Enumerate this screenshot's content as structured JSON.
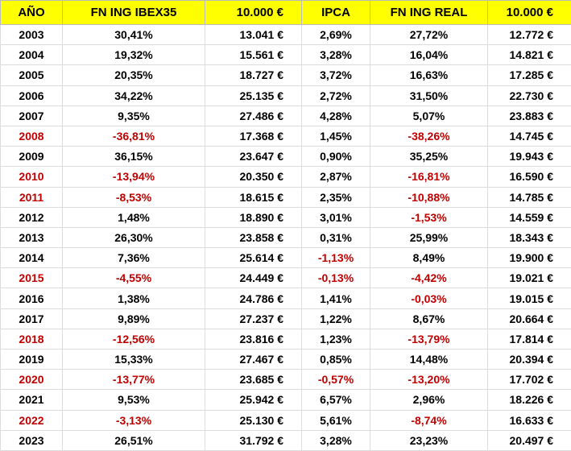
{
  "colors": {
    "header_bg": "#ffff00",
    "negative": "#c00000",
    "text": "#000000"
  },
  "table": {
    "headers": [
      "AÑO",
      "FN ING IBEX35",
      "10.000 €",
      "IPCA",
      "FN ING REAL",
      "10.000 €"
    ],
    "rows": [
      {
        "year": "2003",
        "ibex": "30,41%",
        "ibex_value": "13.041 €",
        "ipca": "2,69%",
        "real": "27,72%",
        "real_value": "12.772 €"
      },
      {
        "year": "2004",
        "ibex": "19,32%",
        "ibex_value": "15.561 €",
        "ipca": "3,28%",
        "real": "16,04%",
        "real_value": "14.821 €"
      },
      {
        "year": "2005",
        "ibex": "20,35%",
        "ibex_value": "18.727 €",
        "ipca": "3,72%",
        "real": "16,63%",
        "real_value": "17.285 €"
      },
      {
        "year": "2006",
        "ibex": "34,22%",
        "ibex_value": "25.135 €",
        "ipca": "2,72%",
        "real": "31,50%",
        "real_value": "22.730 €"
      },
      {
        "year": "2007",
        "ibex": "9,35%",
        "ibex_value": "27.486 €",
        "ipca": "4,28%",
        "real": "5,07%",
        "real_value": "23.883 €"
      },
      {
        "year": "2008",
        "ibex": "-36,81%",
        "ibex_value": "17.368 €",
        "ipca": "1,45%",
        "real": "-38,26%",
        "real_value": "14.745 €"
      },
      {
        "year": "2009",
        "ibex": "36,15%",
        "ibex_value": "23.647 €",
        "ipca": "0,90%",
        "real": "35,25%",
        "real_value": "19.943 €"
      },
      {
        "year": "2010",
        "ibex": "-13,94%",
        "ibex_value": "20.350 €",
        "ipca": "2,87%",
        "real": "-16,81%",
        "real_value": "16.590 €"
      },
      {
        "year": "2011",
        "ibex": "-8,53%",
        "ibex_value": "18.615 €",
        "ipca": "2,35%",
        "real": "-10,88%",
        "real_value": "14.785 €"
      },
      {
        "year": "2012",
        "ibex": "1,48%",
        "ibex_value": "18.890 €",
        "ipca": "3,01%",
        "real": "-1,53%",
        "real_value": "14.559 €"
      },
      {
        "year": "2013",
        "ibex": "26,30%",
        "ibex_value": "23.858 €",
        "ipca": "0,31%",
        "real": "25,99%",
        "real_value": "18.343 €"
      },
      {
        "year": "2014",
        "ibex": "7,36%",
        "ibex_value": "25.614 €",
        "ipca": "-1,13%",
        "real": "8,49%",
        "real_value": "19.900 €"
      },
      {
        "year": "2015",
        "ibex": "-4,55%",
        "ibex_value": "24.449 €",
        "ipca": "-0,13%",
        "real": "-4,42%",
        "real_value": "19.021 €"
      },
      {
        "year": "2016",
        "ibex": "1,38%",
        "ibex_value": "24.786 €",
        "ipca": "1,41%",
        "real": "-0,03%",
        "real_value": "19.015 €"
      },
      {
        "year": "2017",
        "ibex": "9,89%",
        "ibex_value": "27.237 €",
        "ipca": "1,22%",
        "real": "8,67%",
        "real_value": "20.664 €"
      },
      {
        "year": "2018",
        "ibex": "-12,56%",
        "ibex_value": "23.816 €",
        "ipca": "1,23%",
        "real": "-13,79%",
        "real_value": "17.814 €"
      },
      {
        "year": "2019",
        "ibex": "15,33%",
        "ibex_value": "27.467 €",
        "ipca": "0,85%",
        "real": "14,48%",
        "real_value": "20.394 €"
      },
      {
        "year": "2020",
        "ibex": "-13,77%",
        "ibex_value": "23.685 €",
        "ipca": "-0,57%",
        "real": "-13,20%",
        "real_value": "17.702 €"
      },
      {
        "year": "2021",
        "ibex": "9,53%",
        "ibex_value": "25.942 €",
        "ipca": "6,57%",
        "real": "2,96%",
        "real_value": "18.226 €"
      },
      {
        "year": "2022",
        "ibex": "-3,13%",
        "ibex_value": "25.130 €",
        "ipca": "5,61%",
        "real": "-8,74%",
        "real_value": "16.633 €"
      },
      {
        "year": "2023",
        "ibex": "26,51%",
        "ibex_value": "31.792 €",
        "ipca": "3,28%",
        "real": "23,23%",
        "real_value": "20.497 €"
      }
    ]
  }
}
